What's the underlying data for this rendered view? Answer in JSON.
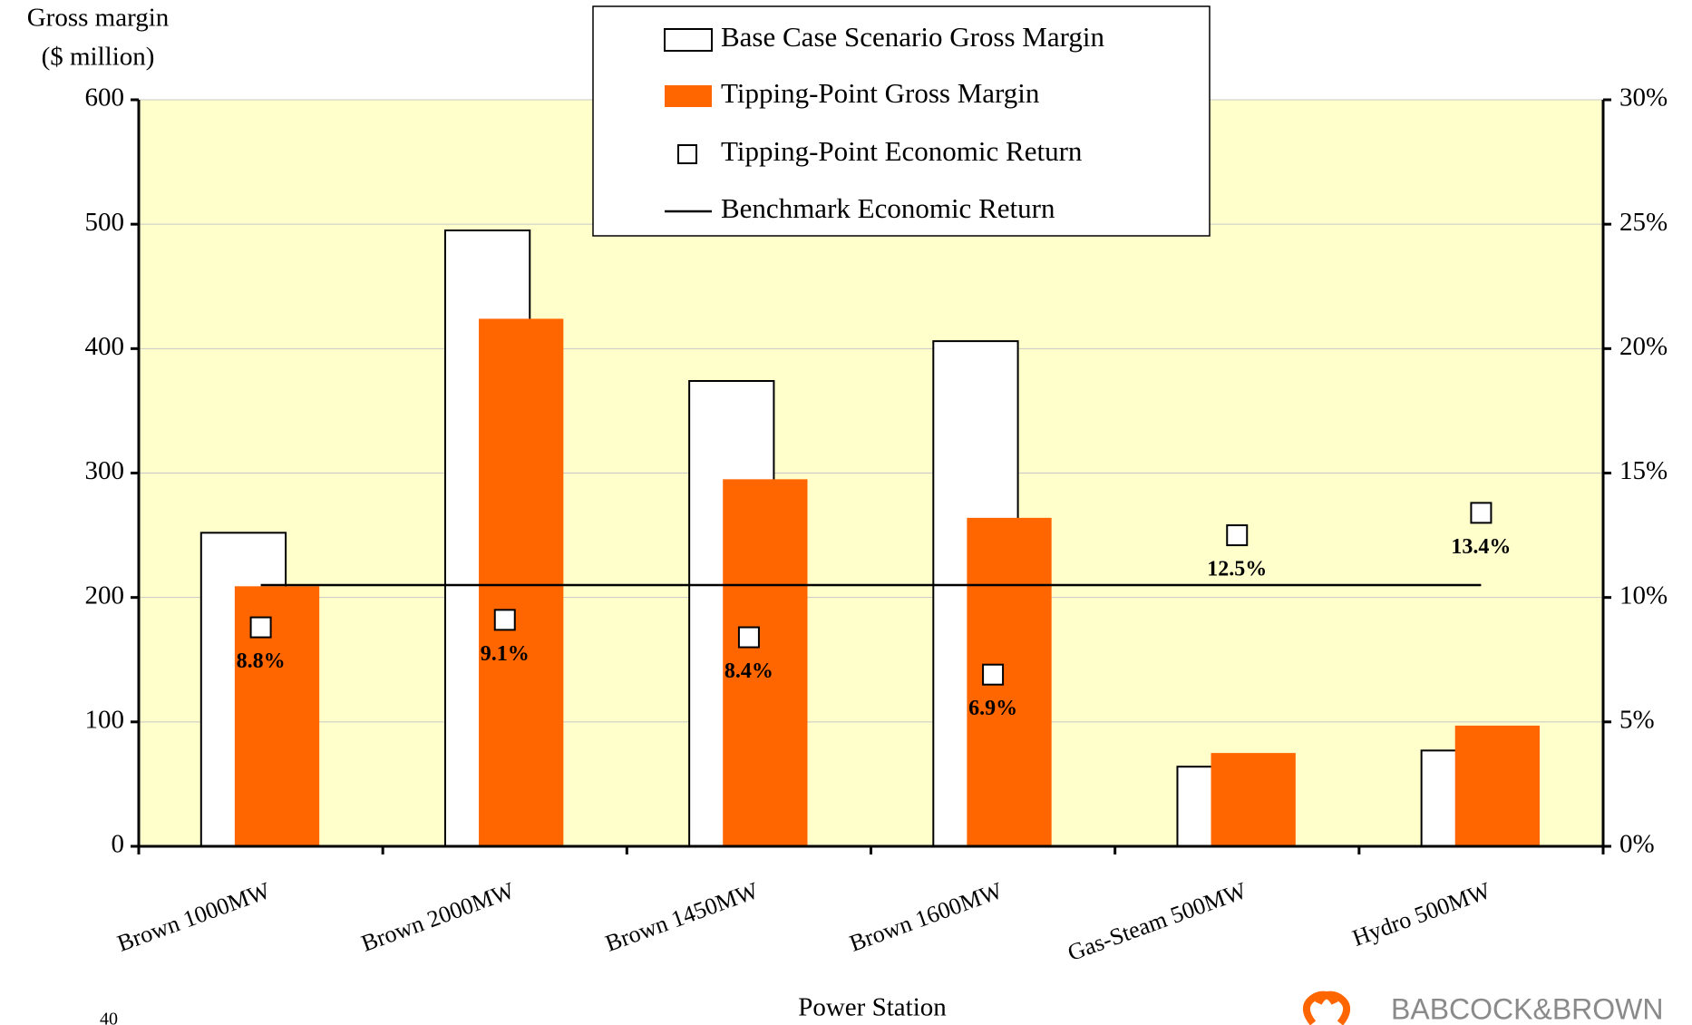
{
  "chart_data": {
    "type": "bar",
    "y_axis_title": [
      "Gross margin",
      "($ million)"
    ],
    "x_axis_title": "Power Station",
    "categories": [
      "Brown 1000MW",
      "Brown 2000MW",
      "Brown 1450MW",
      "Brown 1600MW",
      "Gas-Steam 500MW",
      "Hydro 500MW"
    ],
    "series": [
      {
        "name": "Base Case Scenario Gross Margin",
        "color": "#ffffff",
        "values": [
          252,
          495,
          374,
          406,
          64,
          77
        ]
      },
      {
        "name": "Tipping-Point Gross Margin",
        "color": "#ff6600",
        "values": [
          209,
          424,
          295,
          264,
          75,
          97
        ]
      },
      {
        "name": "Tipping-Point Economic Return",
        "color": "#ffffff",
        "axis": "y2",
        "values": [
          8.8,
          9.1,
          8.4,
          6.9,
          12.5,
          13.4
        ],
        "value_labels": [
          "8.8%",
          "9.1%",
          "8.4%",
          "6.9%",
          "12.5%",
          "13.4%"
        ]
      },
      {
        "name": "Benchmark Economic Return",
        "color": "#000000",
        "axis": "y2",
        "values": [
          10.5,
          10.5,
          10.5,
          10.5,
          10.5,
          10.5
        ]
      }
    ],
    "ylim": [
      0,
      600
    ],
    "yticks": [
      0,
      100,
      200,
      300,
      400,
      500,
      600
    ],
    "y2lim": [
      0,
      30
    ],
    "y2ticks": [
      {
        "value": 0,
        "label": "0%"
      },
      {
        "value": 5,
        "label": "5%"
      },
      {
        "value": 10,
        "label": "10%"
      },
      {
        "value": 15,
        "label": "15%"
      },
      {
        "value": 20,
        "label": "20%"
      },
      {
        "value": 25,
        "label": "25%"
      },
      {
        "value": 30,
        "label": "30%"
      }
    ],
    "grid": true,
    "legend": "top",
    "plot_background": "#ffffcc"
  },
  "footer": {
    "page_number": "40",
    "logo": "BABCOCK&BROWN"
  }
}
